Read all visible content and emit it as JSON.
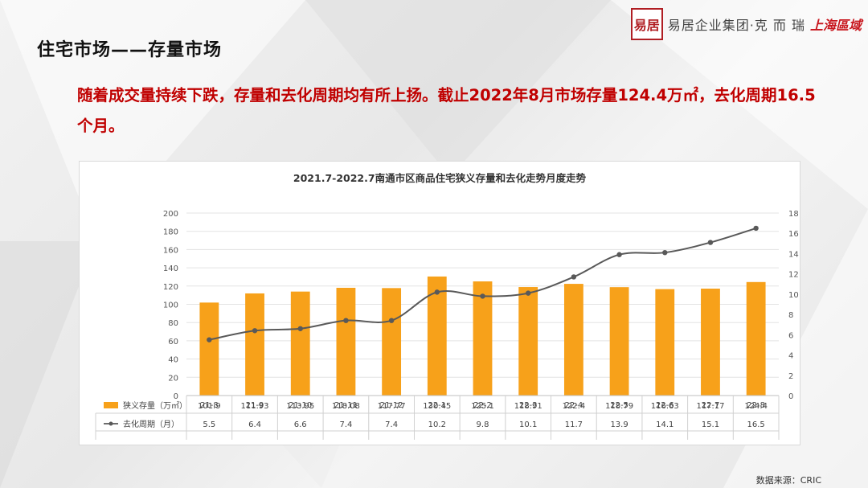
{
  "header": {
    "logo_seal": "易居",
    "brand_text": "易居企业集团·克 而 瑞",
    "brand_sub": "上海區域",
    "page_title": "住宅市场——存量市场"
  },
  "headline": "随着成交量持续下跌，存量和去化周期均有所上扬。截止2022年8月市场存量124.4万㎡，去化周期16.5个月。",
  "source": "数据来源：CRIC",
  "chart_data": {
    "type": "bar+line",
    "title": "2021.7-2022.7南通市区商品住宅狭义存量和去化走势月度走势",
    "categories": [
      "21-8",
      "21-9",
      "21-10",
      "21-11",
      "21-12",
      "22-1",
      "22-2",
      "22-3",
      "22-4",
      "22-5",
      "22-6",
      "22-7",
      "22-8"
    ],
    "series": [
      {
        "name": "狭义存量（万㎡）",
        "type": "bar",
        "axis": "left",
        "color": "#f7a11a",
        "values": [
          101.9,
          111.93,
          113.95,
          118.08,
          117.77,
          130.45,
          125.1,
          118.91,
          122.4,
          118.79,
          116.63,
          117.17,
          124.4
        ],
        "labels": [
          "101.9",
          "111.93",
          "113.95",
          "118.08",
          "117.77",
          "130.45",
          "125.1",
          "118.91",
          "122.4",
          "118.79",
          "116.63",
          "117.17",
          "124.4"
        ]
      },
      {
        "name": "去化周期（月）",
        "type": "line",
        "axis": "right",
        "color": "#595959",
        "values": [
          5.5,
          6.4,
          6.6,
          7.4,
          7.4,
          10.2,
          9.8,
          10.1,
          11.7,
          13.9,
          14.1,
          15.1,
          16.5
        ],
        "labels": [
          "5.5",
          "6.4",
          "6.6",
          "7.4",
          "7.4",
          "10.2",
          "9.8",
          "10.1",
          "11.7",
          "13.9",
          "14.1",
          "15.1",
          "16.5"
        ]
      }
    ],
    "y_left": {
      "min": 0,
      "max": 200,
      "step": 20,
      "ticks": [
        "0",
        "20",
        "40",
        "60",
        "80",
        "100",
        "120",
        "140",
        "160",
        "180",
        "200"
      ]
    },
    "y_right": {
      "min": 0,
      "max": 18,
      "step": 2,
      "ticks": [
        "0",
        "2",
        "4",
        "6",
        "8",
        "10",
        "12",
        "14",
        "16",
        "18"
      ]
    },
    "grid": true,
    "legend": "data-table"
  }
}
